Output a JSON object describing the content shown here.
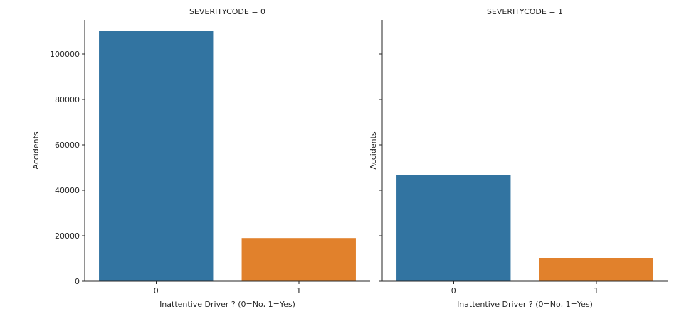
{
  "chart_data": {
    "type": "bar",
    "facet_variable": "SEVERITYCODE",
    "xlabel": "Inattentive Driver ? (0=No, 1=Yes)",
    "ylabel": "Accidents",
    "categories": [
      "0",
      "1"
    ],
    "ylim": [
      0,
      115000
    ],
    "yticks": [
      0,
      20000,
      40000,
      60000,
      80000,
      100000
    ],
    "shared_y": true,
    "grid": false,
    "legend": "none",
    "colors": [
      "#3274a1",
      "#e1812c"
    ],
    "panels": [
      {
        "title": "SEVERITYCODE = 0",
        "values": [
          110000,
          19000
        ]
      },
      {
        "title": "SEVERITYCODE = 1",
        "values": [
          46800,
          10300
        ]
      }
    ]
  }
}
